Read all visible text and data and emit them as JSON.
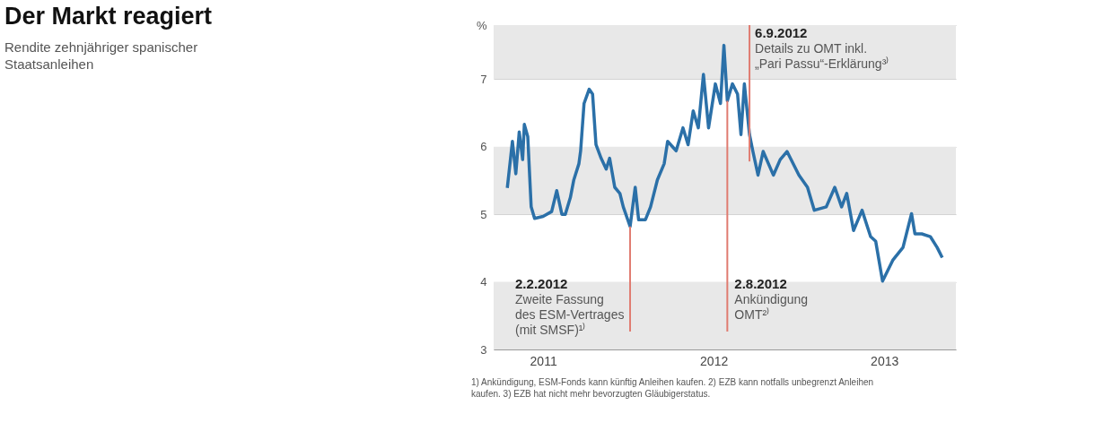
{
  "chart_data": {
    "type": "line",
    "title": "Der Markt reagiert",
    "subtitle": "Rendite zehnjähriger spanischer Staatsanleihen",
    "xlim": [
      2011.21,
      2013.92
    ],
    "xticks": [
      {
        "value": 2011.5,
        "label": "2011"
      },
      {
        "value": 2012.5,
        "label": "2012"
      },
      {
        "value": 2013.5,
        "label": "2013"
      }
    ],
    "ylim": [
      3,
      7.8
    ],
    "yticks": [
      3,
      4,
      5,
      6,
      7,
      {
        "value": 7.8,
        "label": "%"
      }
    ],
    "grid": "y",
    "bands": [
      {
        "axis": "y",
        "from": 3,
        "to": 4,
        "color": "#e8e8e8"
      },
      {
        "axis": "y",
        "from": 5,
        "to": 6,
        "color": "#e8e8e8"
      },
      {
        "axis": "y",
        "from": 7,
        "to": 7.8,
        "color": "#e8e8e8"
      }
    ],
    "ref_lines": [
      {
        "axis": "x",
        "value": 2012.01,
        "label": "2.2.2012\nZweite Fassung\ndes ESM-Vertrages\n(mit SMSF)¹⁾",
        "color": "#e07b70"
      },
      {
        "axis": "x",
        "value": 2012.58,
        "label": "2.8.2012\nAnkündigung\nOMT²⁾",
        "color": "#e07b70"
      },
      {
        "axis": "x",
        "value": 2012.71,
        "label": "6.9.2012\nDetails zu OMT inkl.\n„Pari Passu“-Erklärung³⁾",
        "color": "#e07b70"
      }
    ],
    "annotations": [
      "1) Ankündigung, ESM-Fonds kann künftig Anleihen kaufen. 2) EZB kann notfalls unbegrenzt Anleihen kaufen. 3) EZB hat nicht mehr bevorzugten Gläubigerstatus."
    ],
    "series": [
      {
        "color": "#2b70a8",
        "line_style": "solid",
        "x": [
          2011.29,
          2011.32,
          2011.34,
          2011.36,
          2011.38,
          2011.39,
          2011.41,
          2011.43,
          2011.45,
          2011.5,
          2011.55,
          2011.58,
          2011.61,
          2011.63,
          2011.66,
          2011.68,
          2011.71,
          2011.72,
          2011.74,
          2011.77,
          2011.79,
          2011.81,
          2011.84,
          2011.87,
          2011.89,
          2011.92,
          2011.95,
          2011.97,
          2012.01,
          2012.04,
          2012.06,
          2012.1,
          2012.13,
          2012.17,
          2012.21,
          2012.23,
          2012.28,
          2012.32,
          2012.35,
          2012.38,
          2012.41,
          2012.44,
          2012.47,
          2012.51,
          2012.54,
          2012.56,
          2012.58,
          2012.61,
          2012.64,
          2012.66,
          2012.68,
          2012.71,
          2012.73,
          2012.76,
          2012.79,
          2012.85,
          2012.89,
          2012.93,
          2013.0,
          2013.05,
          2013.09,
          2013.16,
          2013.21,
          2013.25,
          2013.28,
          2013.32,
          2013.37,
          2013.42,
          2013.45,
          2013.49,
          2013.55,
          2013.61,
          2013.66,
          2013.68,
          2013.72,
          2013.77,
          2013.81,
          2013.84
        ],
        "values": [
          5.39,
          6.08,
          5.6,
          6.22,
          5.81,
          6.33,
          6.15,
          5.11,
          4.94,
          4.97,
          5.04,
          5.35,
          5.0,
          5.0,
          5.25,
          5.51,
          5.75,
          5.94,
          6.64,
          6.85,
          6.78,
          6.03,
          5.83,
          5.67,
          5.83,
          5.4,
          5.31,
          5.11,
          4.82,
          5.4,
          4.92,
          4.92,
          5.11,
          5.51,
          5.75,
          6.08,
          5.94,
          6.28,
          6.03,
          6.53,
          6.28,
          7.07,
          6.28,
          6.93,
          6.64,
          7.5,
          6.68,
          6.93,
          6.78,
          6.18,
          6.93,
          6.18,
          5.93,
          5.58,
          5.93,
          5.58,
          5.81,
          5.93,
          5.58,
          5.4,
          5.06,
          5.11,
          5.4,
          5.11,
          5.31,
          4.76,
          5.06,
          4.67,
          4.6,
          4.01,
          4.32,
          4.51,
          5.01,
          4.71,
          4.71,
          4.67,
          4.51,
          4.36
        ]
      }
    ]
  }
}
